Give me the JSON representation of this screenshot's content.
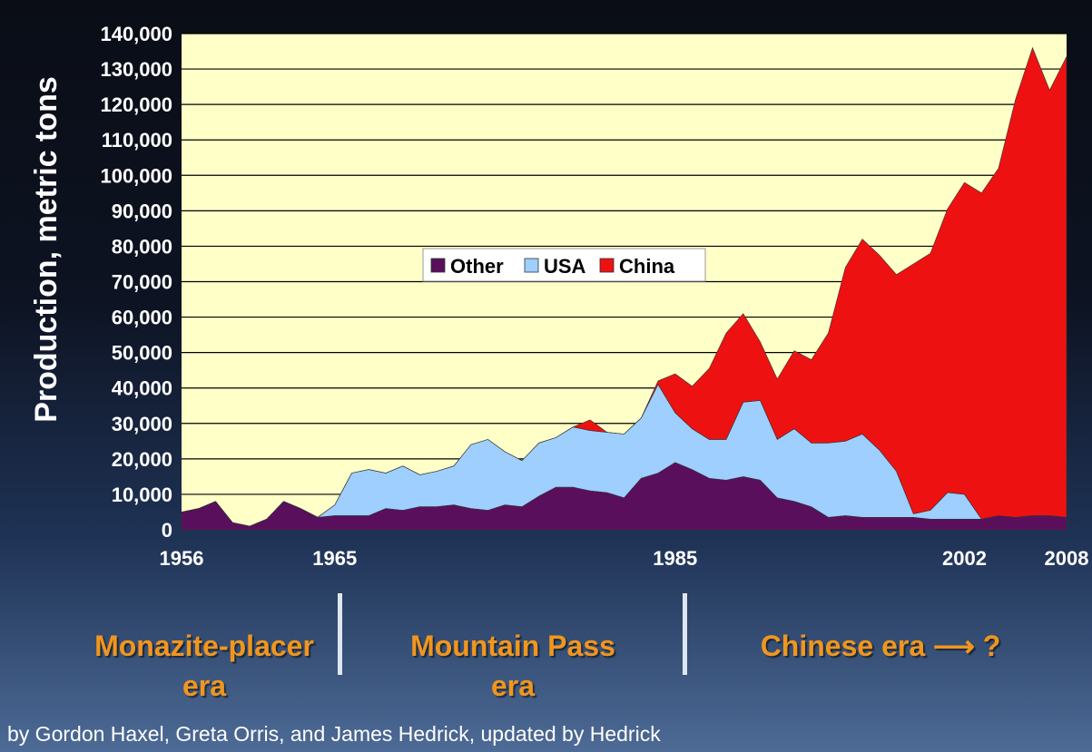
{
  "chart_data": {
    "type": "area",
    "stacked": true,
    "ylabel": "Production, metric tons",
    "ylim": [
      0,
      140000
    ],
    "yticks": [
      0,
      10000,
      20000,
      30000,
      40000,
      50000,
      60000,
      70000,
      80000,
      90000,
      100000,
      110000,
      120000,
      130000,
      140000
    ],
    "ytick_labels": [
      "0",
      "10,000",
      "20,000",
      "30,000",
      "40,000",
      "50,000",
      "60,000",
      "70,000",
      "80,000",
      "90,000",
      "100,000",
      "110,000",
      "120,000",
      "130,000",
      "140,000"
    ],
    "xlim": [
      1956,
      2008
    ],
    "xtick_labels": [
      "1956",
      "1965",
      "1985",
      "2002",
      "2008"
    ],
    "grid": true,
    "legend_position": "center",
    "background_color": "#ffffc8",
    "years": [
      1956,
      1957,
      1958,
      1959,
      1960,
      1961,
      1962,
      1963,
      1964,
      1965,
      1966,
      1967,
      1968,
      1969,
      1970,
      1971,
      1972,
      1973,
      1974,
      1975,
      1976,
      1977,
      1978,
      1979,
      1980,
      1981,
      1982,
      1983,
      1984,
      1985,
      1986,
      1987,
      1988,
      1989,
      1990,
      1991,
      1992,
      1993,
      1994,
      1995,
      1996,
      1997,
      1998,
      1999,
      2000,
      2001,
      2002,
      2003,
      2004,
      2005,
      2006,
      2007,
      2008
    ],
    "series": [
      {
        "name": "Other",
        "color": "#5a0f5c",
        "values": [
          5000,
          6000,
          8000,
          2000,
          1000,
          3000,
          8000,
          6000,
          3500,
          4000,
          4000,
          4000,
          6000,
          5500,
          6500,
          6500,
          7000,
          6000,
          5500,
          7000,
          6500,
          9500,
          12000,
          12000,
          11000,
          10500,
          9000,
          14500,
          16000,
          19000,
          17000,
          14500,
          14000,
          15000,
          14000,
          9000,
          8000,
          6500,
          3500,
          4000,
          3500,
          3500,
          3500,
          3500,
          3000,
          3000,
          3000,
          3000,
          4000,
          3500,
          4000,
          4000,
          3500
        ]
      },
      {
        "name": "USA",
        "color": "#9ecfff",
        "values": [
          0,
          0,
          0,
          0,
          0,
          0,
          0,
          0,
          0,
          3000,
          12000,
          13000,
          10000,
          12500,
          9000,
          10000,
          11000,
          18000,
          20000,
          15000,
          13000,
          15000,
          14000,
          17000,
          17000,
          17000,
          18000,
          17000,
          25000,
          14000,
          11500,
          11000,
          11500,
          21000,
          22500,
          16500,
          20500,
          18000,
          21000,
          21000,
          23500,
          19000,
          13000,
          1000,
          2500,
          7500,
          7000,
          0,
          0,
          0,
          0,
          0,
          0
        ]
      },
      {
        "name": "China",
        "color": "#ee1111",
        "values": [
          0,
          0,
          0,
          0,
          0,
          0,
          0,
          0,
          0,
          0,
          0,
          0,
          0,
          0,
          0,
          0,
          0,
          0,
          0,
          0,
          0,
          0,
          0,
          0,
          3000,
          0,
          0,
          0,
          1000,
          11000,
          12000,
          20000,
          30000,
          25000,
          16500,
          17000,
          22000,
          23500,
          31000,
          49000,
          55000,
          55000,
          55500,
          70500,
          72500,
          80000,
          88000,
          92000,
          98000,
          118000,
          132000,
          120000,
          130000
        ]
      }
    ],
    "era_labels": [
      "Monazite-placer\nera",
      "Mountain Pass\nera",
      "Chinese era ⟶  ?"
    ],
    "credit": "by Gordon Haxel, Greta Orris, and James Hedrick, updated by Hedrick"
  }
}
